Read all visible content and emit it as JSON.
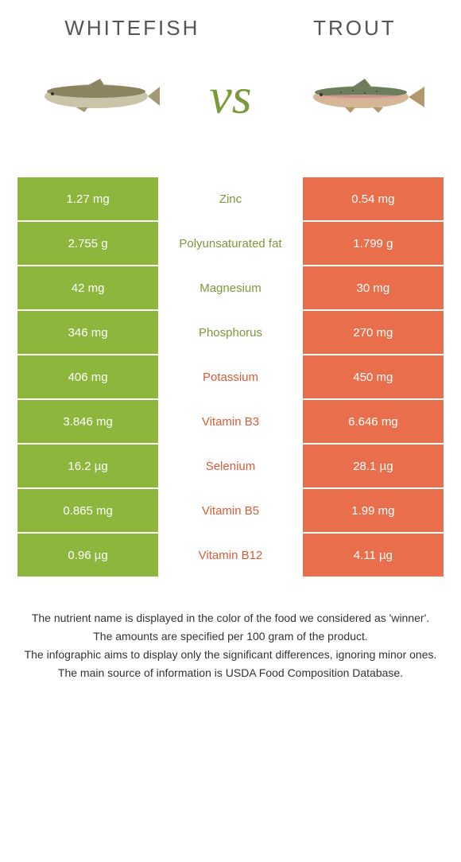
{
  "header": {
    "left_title": "WHITEFISH",
    "right_title": "TROUT"
  },
  "vs": {
    "text": "vs"
  },
  "colors": {
    "green": "#8cb63c",
    "orange": "#e86e4c",
    "nutrient_green": "#7a9a3b",
    "nutrient_orange": "#d85c3a",
    "background": "#ffffff"
  },
  "table": {
    "rows": [
      {
        "left": "1.27 mg",
        "nutrient": "Zinc",
        "right": "0.54 mg",
        "winner": "green"
      },
      {
        "left": "2.755 g",
        "nutrient": "Polyunsaturated fat",
        "right": "1.799 g",
        "winner": "green"
      },
      {
        "left": "42 mg",
        "nutrient": "Magnesium",
        "right": "30 mg",
        "winner": "green"
      },
      {
        "left": "346 mg",
        "nutrient": "Phosphorus",
        "right": "270 mg",
        "winner": "green"
      },
      {
        "left": "406 mg",
        "nutrient": "Potassium",
        "right": "450 mg",
        "winner": "orange"
      },
      {
        "left": "3.846 mg",
        "nutrient": "Vitamin B3",
        "right": "6.646 mg",
        "winner": "orange"
      },
      {
        "left": "16.2 µg",
        "nutrient": "Selenium",
        "right": "28.1 µg",
        "winner": "orange"
      },
      {
        "left": "0.865 mg",
        "nutrient": "Vitamin B5",
        "right": "1.99 mg",
        "winner": "orange"
      },
      {
        "left": "0.96 µg",
        "nutrient": "Vitamin B12",
        "right": "4.11 µg",
        "winner": "orange"
      }
    ]
  },
  "footer": {
    "line1": "The nutrient name is displayed in the color of the food we considered as 'winner'.",
    "line2": "The amounts are specified per 100 gram of the product.",
    "line3": "The infographic aims to display only the significant differences, ignoring minor ones.",
    "line4": "The main source of information is USDA Food Composition Database."
  }
}
